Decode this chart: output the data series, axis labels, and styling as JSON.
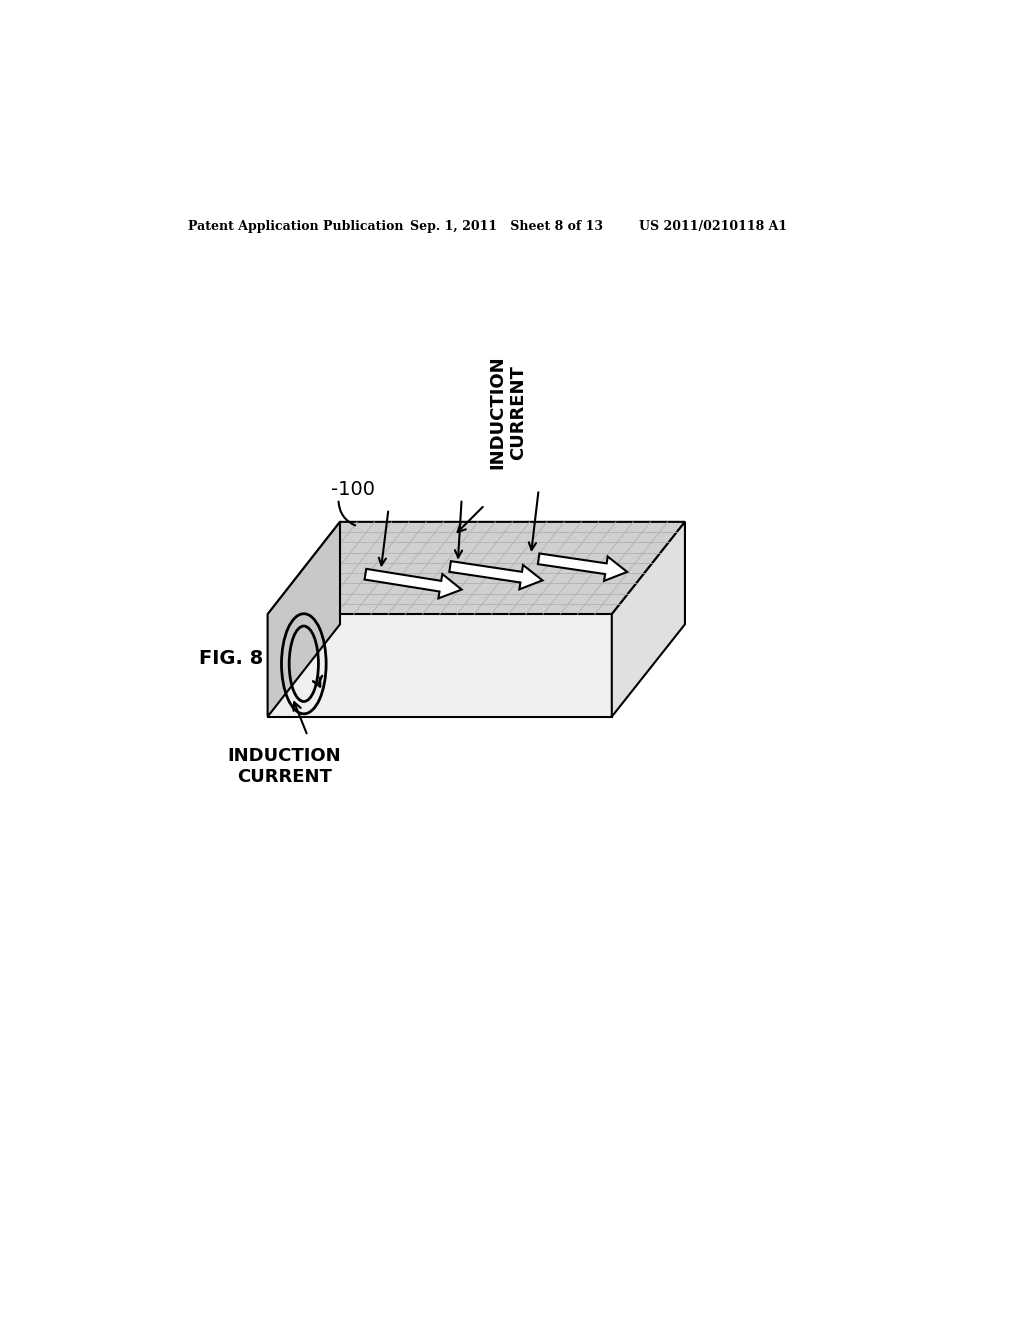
{
  "background_color": "#ffffff",
  "header_left": "Patent Application Publication",
  "header_mid": "Sep. 1, 2011   Sheet 8 of 13",
  "header_right": "US 2011/0210118 A1",
  "fig_label": "FIG. 8",
  "label_100": "-100",
  "label_induction_top": "INDUCTION\nCURRENT",
  "label_induction_bottom": "INDUCTION\nCURRENT",
  "box_top_color": "#d0d0d0",
  "box_front_color": "#f0f0f0",
  "box_right_color": "#e0e0e0",
  "box_left_color": "#c8c8c8",
  "grid_color": "#b0b0b0",
  "line_color": "#000000",
  "arrow_face_color": "#ffffff"
}
